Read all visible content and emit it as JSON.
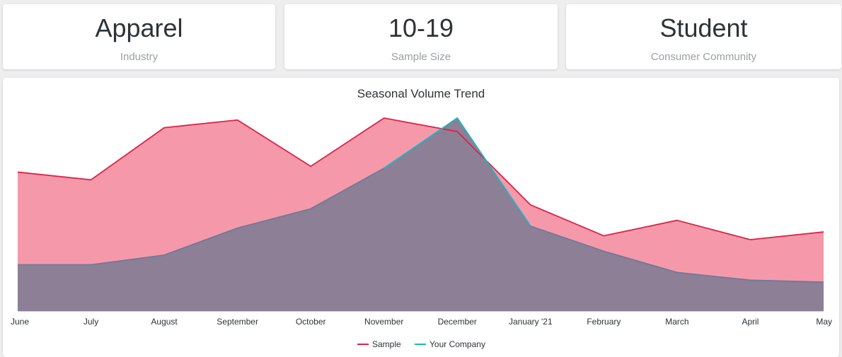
{
  "cards": [
    {
      "value": "Apparel",
      "label": "Industry"
    },
    {
      "value": "10-19",
      "label": "Sample Size"
    },
    {
      "value": "Student",
      "label": "Consumer Community"
    }
  ],
  "chart_data": {
    "type": "area",
    "title": "Seasonal Volume Trend",
    "categories": [
      "June",
      "July",
      "August",
      "September",
      "October",
      "November",
      "December",
      "January '21",
      "February",
      "March",
      "April",
      "May"
    ],
    "series": [
      {
        "name": "Sample",
        "color": "#dc2448",
        "fill": "#f599aa",
        "values": [
          72,
          68,
          95,
          99,
          75,
          100,
          93,
          55,
          39,
          47,
          37,
          41
        ]
      },
      {
        "name": "Your Company",
        "color": "#1ab9c6",
        "fill": "#8c7f96",
        "values": [
          24,
          24,
          29,
          43,
          53,
          74,
          100,
          44,
          31,
          20,
          16,
          15
        ]
      }
    ],
    "ylim": [
      0,
      100
    ],
    "grid": false,
    "legend": "bottom"
  }
}
